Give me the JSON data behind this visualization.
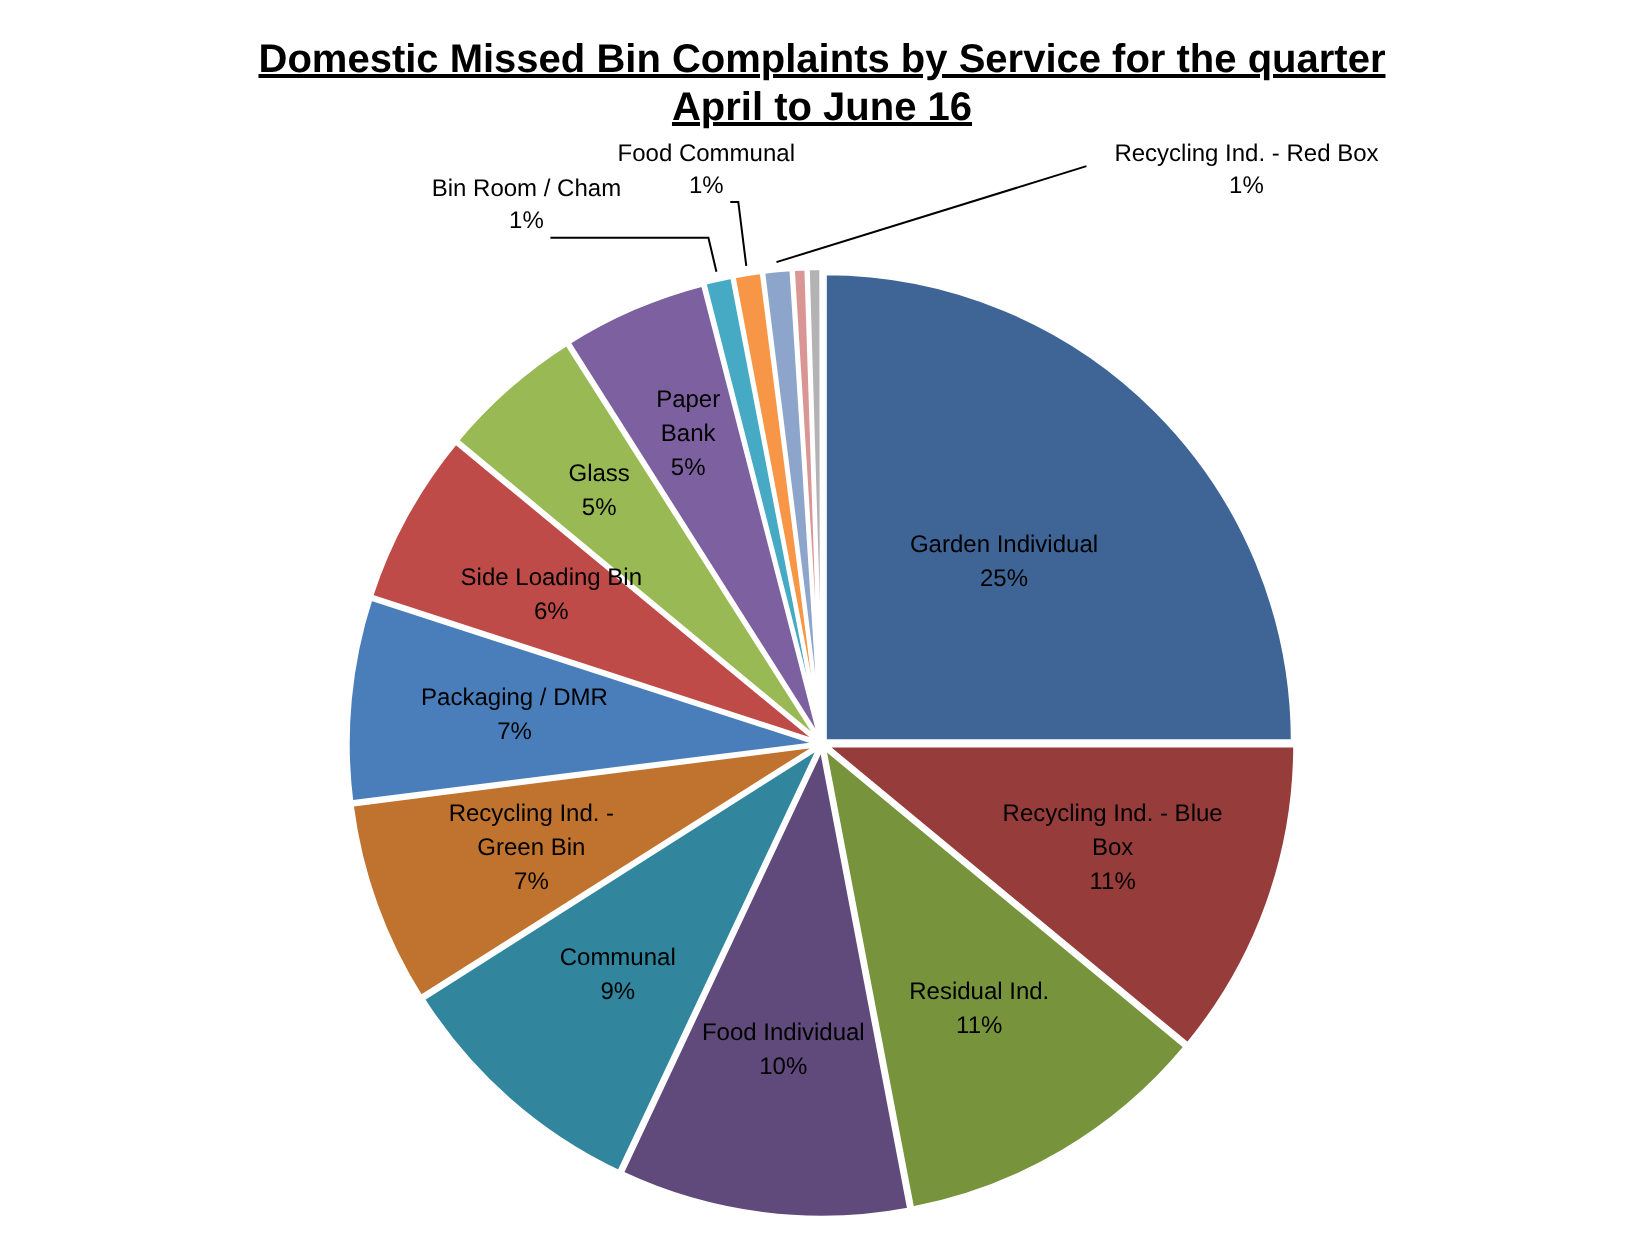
{
  "chart_data": {
    "type": "pie",
    "title": "Domestic Missed Bin Complaints by Service for the quarter\nApril  to  June 16",
    "categories": [
      "Garden Individual",
      "Recycling Ind. - Blue Box",
      "Residual Ind.",
      "Food Individual",
      "Communal",
      "Recycling Ind. - Green Bin",
      "Packaging / DMR",
      "Side Loading Bin",
      "Glass",
      "Paper Bank",
      "Bin Room / Cham",
      "Food Communal",
      "Recycling Ind. - Red Box",
      null,
      null
    ],
    "values": [
      25,
      11,
      11,
      10,
      9,
      7,
      7,
      6,
      5,
      5,
      1,
      1,
      1,
      0.5,
      0.5
    ],
    "value_labels": [
      "25%",
      "11%",
      "11%",
      "10%",
      "9%",
      "7%",
      "7%",
      "6%",
      "5%",
      "5%",
      "1%",
      "1%",
      "1%",
      null,
      null
    ],
    "colors": [
      "#3f6597",
      "#963c3a",
      "#77933c",
      "#604a7b",
      "#31859c",
      "#c0722f",
      "#4a7ebb",
      "#be4b48",
      "#98b954",
      "#7d60a0",
      "#46aac5",
      "#f79646",
      "#8ea5cb",
      "#d99694",
      "#b3b3b3"
    ],
    "legend": false
  }
}
